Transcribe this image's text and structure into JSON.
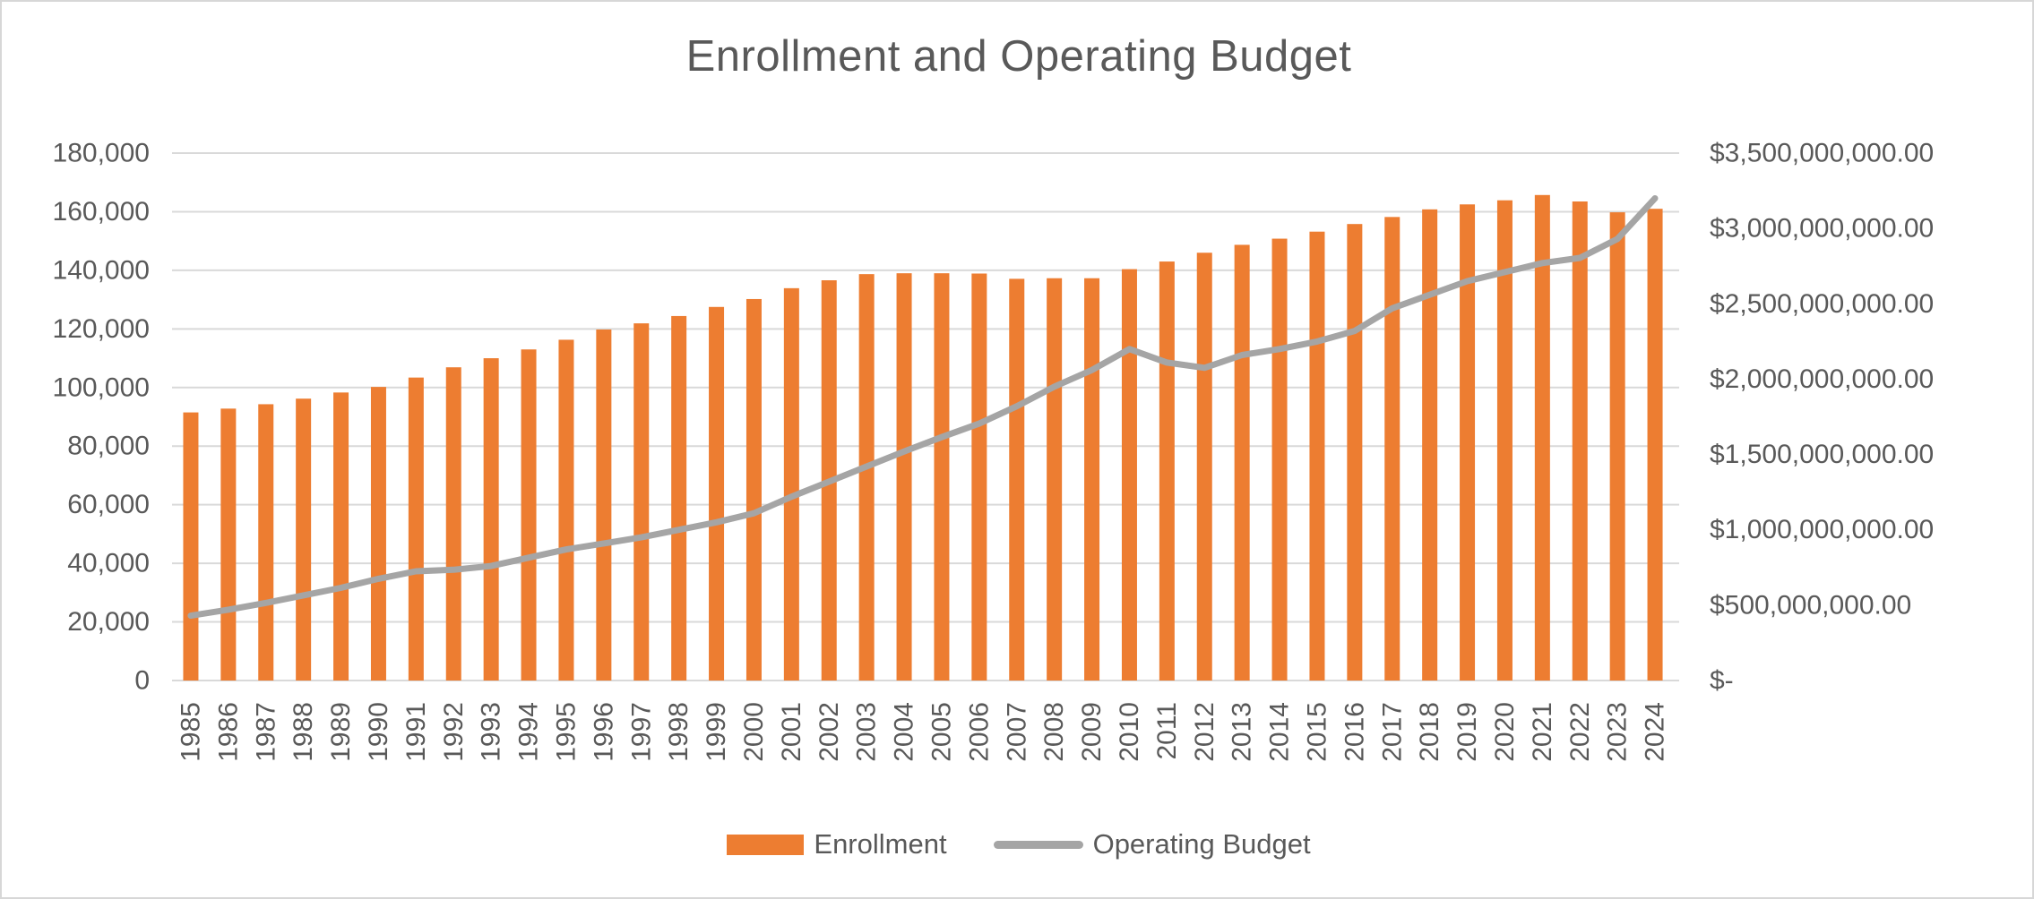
{
  "title": "Enrollment and Operating Budget",
  "colors": {
    "bar": "#ED7D31",
    "line": "#A5A5A5",
    "gridline": "#D9D9D9",
    "axis_text": "#595959",
    "title_text": "#595959",
    "frame_border": "#D7D7D7"
  },
  "legend": [
    {
      "label": "Enrollment",
      "type": "bar",
      "color": "#ED7D31"
    },
    {
      "label": "Operating Budget",
      "type": "line",
      "color": "#A5A5A5"
    }
  ],
  "chart_data": {
    "type": "bar",
    "subtype": "combo-bar-line-two-axes",
    "title": "Enrollment and Operating Budget",
    "grid": true,
    "legend_position": "bottom",
    "categories": [
      "1985",
      "1986",
      "1987",
      "1988",
      "1989",
      "1990",
      "1991",
      "1992",
      "1993",
      "1994",
      "1995",
      "1996",
      "1997",
      "1998",
      "1999",
      "2000",
      "2001",
      "2002",
      "2003",
      "2004",
      "2005",
      "2006",
      "2007",
      "2008",
      "2009",
      "2010",
      "2011",
      "2012",
      "2013",
      "2014",
      "2015",
      "2016",
      "2017",
      "2018",
      "2019",
      "2020",
      "2021",
      "2022",
      "2023",
      "2024"
    ],
    "series": [
      {
        "name": "Enrollment",
        "type": "bar",
        "axis": "left",
        "color": "#ED7D31",
        "values": [
          91500,
          92800,
          94300,
          96200,
          98300,
          100200,
          103400,
          106900,
          110000,
          113000,
          116300,
          119800,
          121900,
          124400,
          127500,
          130200,
          133900,
          136600,
          138700,
          139000,
          139000,
          138900,
          137100,
          137300,
          137300,
          140400,
          143000,
          146000,
          148700,
          150800,
          153200,
          155800,
          158200,
          160800,
          162500,
          163900,
          165700,
          163500,
          159800,
          161000
        ]
      },
      {
        "name": "Operating Budget",
        "type": "line",
        "axis": "right",
        "color": "#A5A5A5",
        "values": [
          430000000,
          470000000,
          515000000,
          565000000,
          615000000,
          675000000,
          725000000,
          735000000,
          760000000,
          815000000,
          870000000,
          910000000,
          950000000,
          1000000000,
          1050000000,
          1110000000,
          1220000000,
          1320000000,
          1420000000,
          1520000000,
          1615000000,
          1705000000,
          1820000000,
          1950000000,
          2060000000,
          2200000000,
          2110000000,
          2075000000,
          2160000000,
          2200000000,
          2250000000,
          2320000000,
          2470000000,
          2560000000,
          2650000000,
          2710000000,
          2770000000,
          2805000000,
          2930000000,
          3200000000
        ]
      }
    ],
    "left_axis": {
      "min": 0,
      "max": 180000,
      "step": 20000,
      "tick_labels": [
        "0",
        "20,000",
        "40,000",
        "60,000",
        "80,000",
        "100,000",
        "120,000",
        "140,000",
        "160,000",
        "180,000"
      ]
    },
    "right_axis": {
      "min": 0,
      "max": 3500000000,
      "step": 500000000,
      "tick_labels": [
        "$-",
        "$500,000,000.00",
        "$1,000,000,000.00",
        "$1,500,000,000.00",
        "$2,000,000,000.00",
        "$2,500,000,000.00",
        "$3,000,000,000.00",
        "$3,500,000,000.00"
      ]
    }
  }
}
